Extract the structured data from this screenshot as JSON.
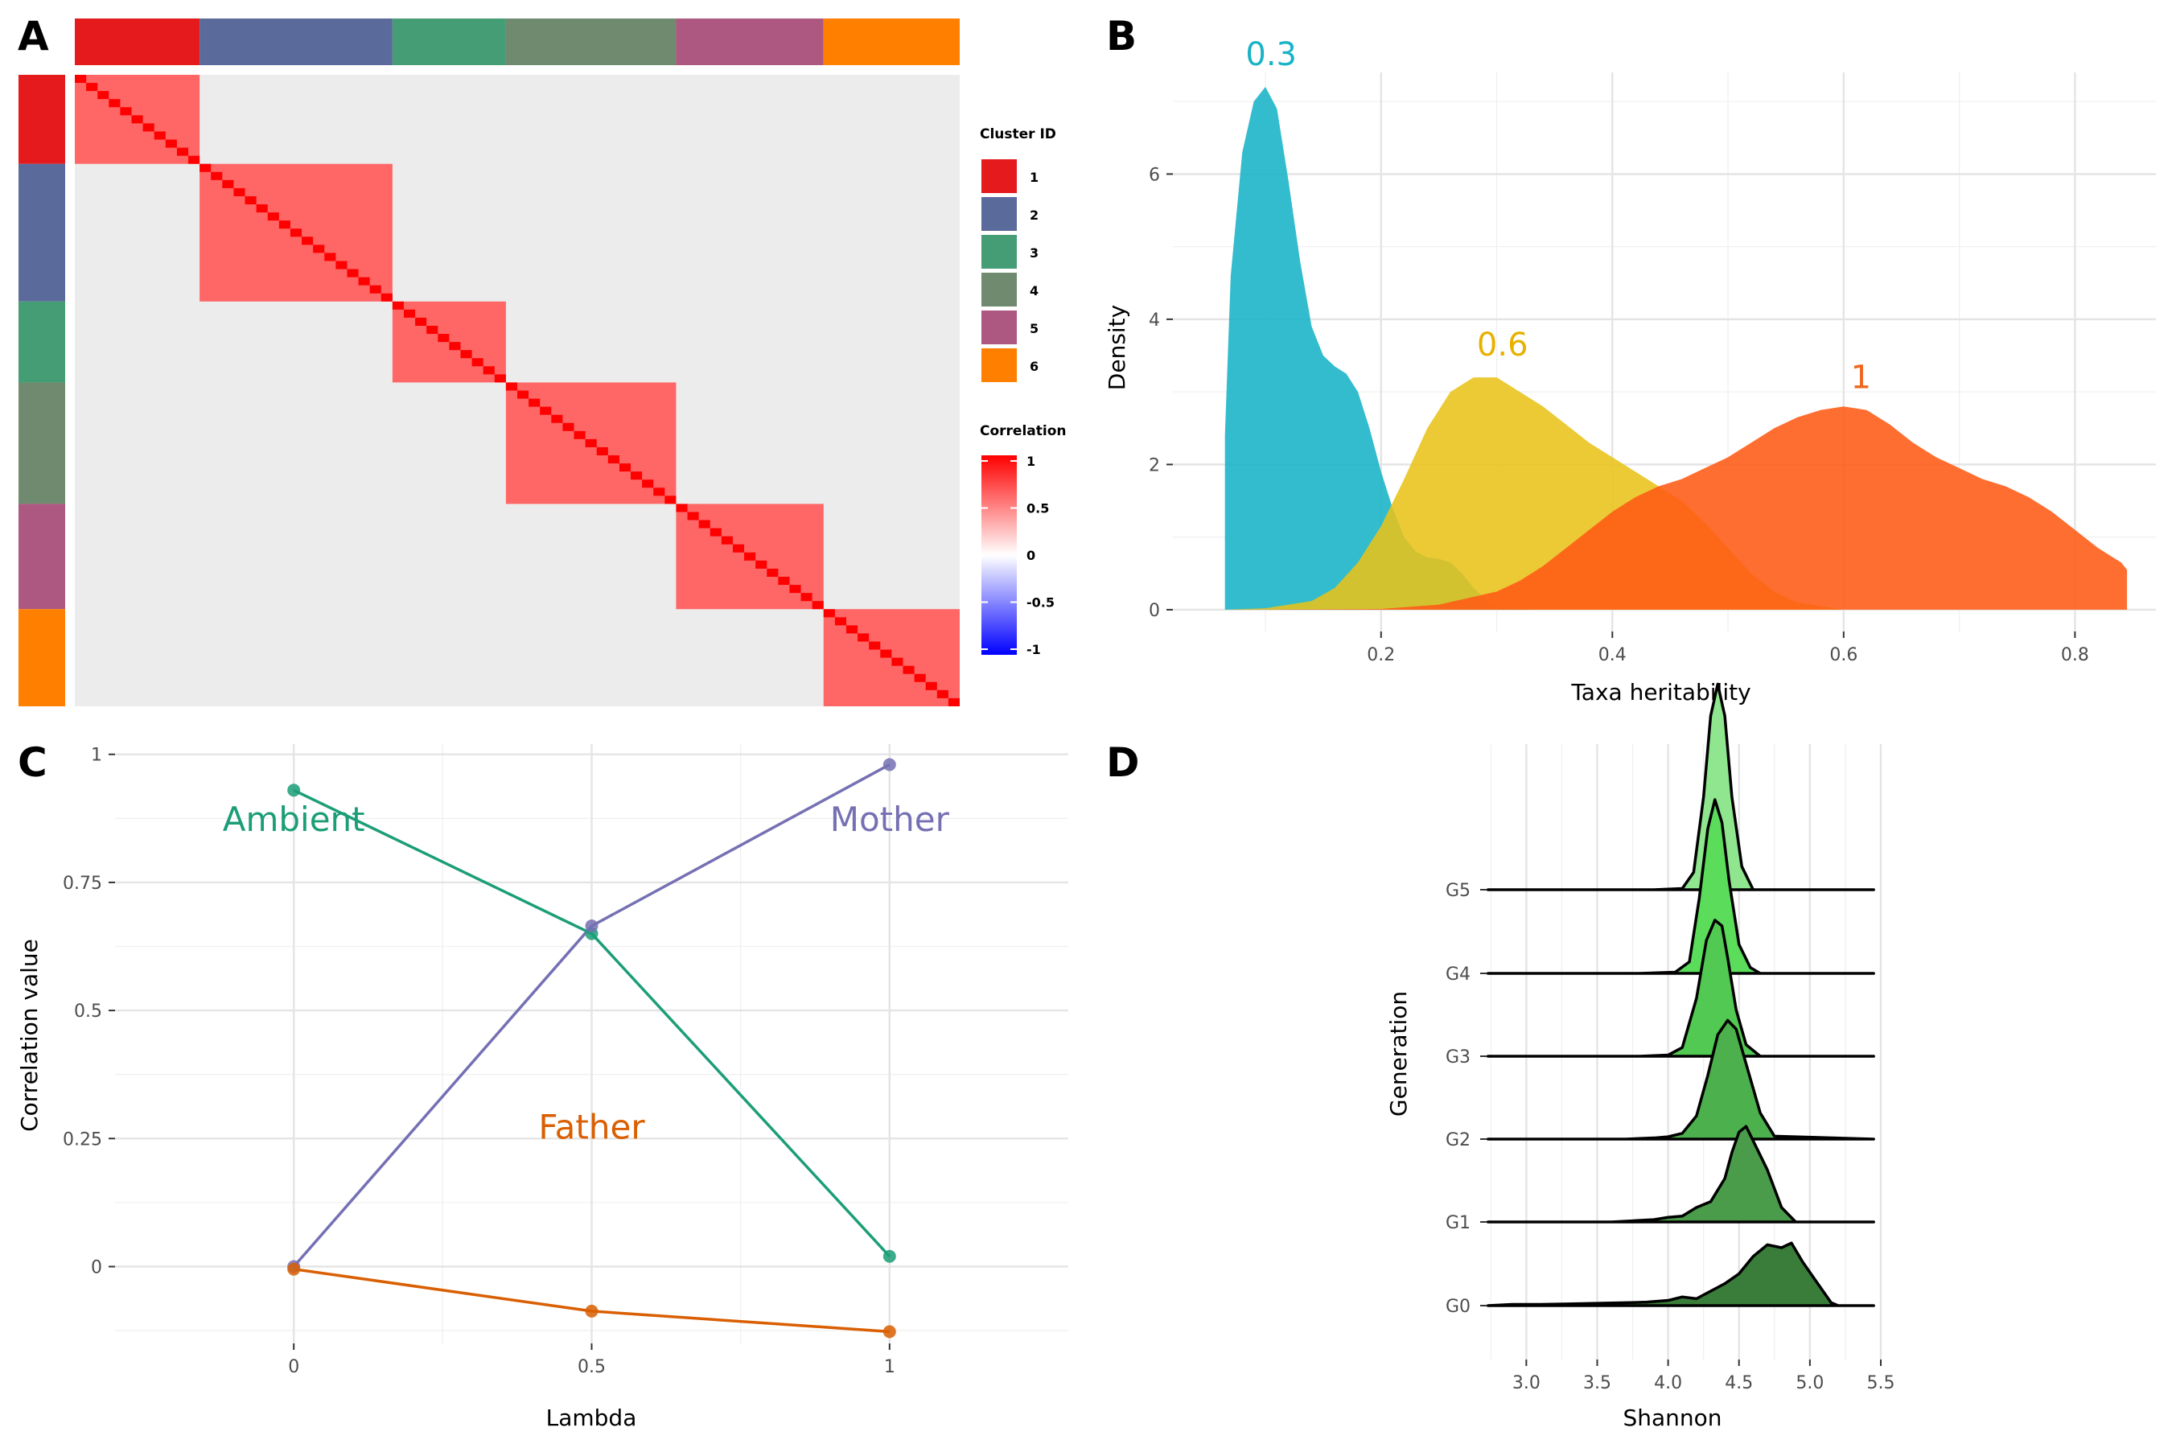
{
  "panels": {
    "a": "A",
    "b": "B",
    "c": "C",
    "d": "D"
  },
  "chart_data": [
    {
      "panel": "A",
      "type": "heatmap",
      "clusters": [
        {
          "id": "1",
          "size": 11,
          "color": "#e41a1c"
        },
        {
          "id": "2",
          "size": 17,
          "color": "#5a6a9b"
        },
        {
          "id": "3",
          "size": 10,
          "color": "#449d75"
        },
        {
          "id": "4",
          "size": 15,
          "color": "#6f8a6e"
        },
        {
          "id": "5",
          "size": 13,
          "color": "#ad5880"
        },
        {
          "id": "6",
          "size": 12,
          "color": "#ff7f00"
        }
      ],
      "within_cluster_correlation": 0.6,
      "between_cluster_correlation": 0.0,
      "diagonal_correlation": 1,
      "legend": {
        "cluster_title": "Cluster ID",
        "correlation_title": "Correlation",
        "correlation_ticks": [
          "1",
          "0.5",
          "0",
          "-0.5",
          "-1"
        ],
        "correlation_colors": [
          "#ff0000",
          "#ffffff",
          "#0000ff"
        ]
      }
    },
    {
      "panel": "B",
      "type": "area",
      "xlabel": "Taxa heritability",
      "ylabel": "Density",
      "xlim": [
        0.02,
        0.87
      ],
      "ylim": [
        -0.3,
        7.4
      ],
      "xticks": [
        0.2,
        0.4,
        0.6,
        0.8
      ],
      "xtick_labels": [
        "0.2",
        "0.4",
        "0.6",
        "0.8"
      ],
      "yticks": [
        0,
        2,
        4,
        6
      ],
      "ytick_labels": [
        "0",
        "2",
        "4",
        "6"
      ],
      "series": [
        {
          "name": "0.3",
          "color": "#17b3c6",
          "x": [
            0.065,
            0.07,
            0.08,
            0.09,
            0.1,
            0.11,
            0.12,
            0.13,
            0.14,
            0.15,
            0.16,
            0.17,
            0.18,
            0.19,
            0.2,
            0.21,
            0.22,
            0.23,
            0.24,
            0.25,
            0.26,
            0.27,
            0.28,
            0.29,
            0.3,
            0.31,
            0.32,
            0.33,
            0.34
          ],
          "y": [
            2.4,
            4.6,
            6.3,
            7.0,
            7.2,
            6.9,
            5.9,
            4.8,
            3.9,
            3.5,
            3.35,
            3.25,
            3.0,
            2.5,
            1.9,
            1.4,
            1.0,
            0.8,
            0.72,
            0.7,
            0.65,
            0.5,
            0.3,
            0.15,
            0.05,
            0.02,
            0.01,
            0.0,
            0.0
          ]
        },
        {
          "name": "0.6",
          "color": "#e8c31a",
          "x": [
            0.065,
            0.1,
            0.14,
            0.16,
            0.18,
            0.2,
            0.22,
            0.24,
            0.26,
            0.28,
            0.3,
            0.32,
            0.34,
            0.36,
            0.38,
            0.4,
            0.42,
            0.44,
            0.46,
            0.48,
            0.5,
            0.52,
            0.54,
            0.56,
            0.6
          ],
          "y": [
            0.0,
            0.02,
            0.12,
            0.3,
            0.65,
            1.15,
            1.8,
            2.5,
            3.0,
            3.2,
            3.2,
            3.0,
            2.8,
            2.55,
            2.3,
            2.1,
            1.9,
            1.7,
            1.5,
            1.2,
            0.85,
            0.5,
            0.25,
            0.1,
            0.0
          ]
        },
        {
          "name": "1",
          "color": "#ff5a14",
          "x": [
            0.065,
            0.2,
            0.25,
            0.3,
            0.32,
            0.34,
            0.36,
            0.38,
            0.4,
            0.42,
            0.44,
            0.46,
            0.48,
            0.5,
            0.52,
            0.54,
            0.56,
            0.58,
            0.6,
            0.62,
            0.64,
            0.66,
            0.68,
            0.7,
            0.72,
            0.74,
            0.76,
            0.78,
            0.8,
            0.82,
            0.84,
            0.845
          ],
          "y": [
            0.0,
            0.01,
            0.07,
            0.25,
            0.4,
            0.6,
            0.85,
            1.1,
            1.35,
            1.55,
            1.7,
            1.8,
            1.95,
            2.1,
            2.3,
            2.5,
            2.65,
            2.75,
            2.8,
            2.75,
            2.55,
            2.3,
            2.1,
            1.95,
            1.8,
            1.7,
            1.55,
            1.35,
            1.1,
            0.85,
            0.65,
            0.55
          ]
        }
      ],
      "annotations": [
        {
          "text": "0.3",
          "x": 0.105,
          "y": 7.5,
          "color": "#17b3c6"
        },
        {
          "text": "0.6",
          "x": 0.305,
          "y": 3.5,
          "color": "#e8b000"
        },
        {
          "text": "1",
          "x": 0.615,
          "y": 3.05,
          "color": "#f0661f"
        }
      ]
    },
    {
      "panel": "C",
      "type": "line",
      "xlabel": "Lambda",
      "ylabel": "Correlation value",
      "xlim": [
        -0.3,
        1.3
      ],
      "ylim": [
        -0.15,
        1.02
      ],
      "xticks": [
        0,
        0.5,
        1
      ],
      "xtick_labels": [
        "0",
        "0.5",
        "1"
      ],
      "yticks": [
        0,
        0.25,
        0.5,
        0.75,
        1
      ],
      "ytick_labels": [
        "0",
        "0.25",
        "0.5",
        "0.75",
        "1"
      ],
      "series": [
        {
          "name": "Ambient",
          "color": "#1b9e77",
          "x": [
            0,
            0.5,
            1
          ],
          "y": [
            0.93,
            0.65,
            0.02
          ]
        },
        {
          "name": "Mother",
          "color": "#7570b3",
          "x": [
            0,
            0.5,
            1
          ],
          "y": [
            0.0,
            0.665,
            0.98
          ]
        },
        {
          "name": "Father",
          "color": "#d95f02",
          "x": [
            0,
            0.5,
            1
          ],
          "y": [
            -0.005,
            -0.087,
            -0.127
          ]
        }
      ],
      "annotations": [
        {
          "text": "Ambient",
          "x": 0.0,
          "y": 0.85,
          "color": "#1b9e77"
        },
        {
          "text": "Mother",
          "x": 1.0,
          "y": 0.85,
          "color": "#7570b3"
        },
        {
          "text": "Father",
          "x": 0.5,
          "y": 0.25,
          "color": "#d95f02"
        }
      ]
    },
    {
      "panel": "D",
      "type": "area",
      "xlabel": "Shannon",
      "ylabel": "Generation",
      "xlim": [
        2.72,
        5.5
      ],
      "xticks": [
        3.0,
        3.5,
        4.0,
        4.5,
        5.0,
        5.5
      ],
      "xtick_labels": [
        "3.0",
        "3.5",
        "4.0",
        "4.5",
        "5.0",
        "5.5"
      ],
      "categories": [
        "G0",
        "G1",
        "G2",
        "G3",
        "G4",
        "G5"
      ],
      "series": [
        {
          "name": "G0",
          "color": "#3a7d3a",
          "x": [
            2.73,
            2.9,
            3.1,
            3.3,
            3.5,
            3.7,
            3.85,
            4.0,
            4.1,
            4.2,
            4.3,
            4.4,
            4.5,
            4.6,
            4.7,
            4.8,
            4.87,
            4.95,
            5.05,
            5.15,
            5.2,
            5.45
          ],
          "y": [
            0.0,
            0.02,
            0.02,
            0.03,
            0.04,
            0.05,
            0.06,
            0.09,
            0.15,
            0.12,
            0.25,
            0.38,
            0.55,
            0.85,
            1.05,
            1.0,
            1.08,
            0.75,
            0.4,
            0.05,
            0.0,
            0.0
          ]
        },
        {
          "name": "G1",
          "color": "#4a9c4a",
          "x": [
            2.73,
            3.6,
            3.75,
            3.9,
            4.0,
            4.1,
            4.2,
            4.3,
            4.4,
            4.45,
            4.5,
            4.55,
            4.6,
            4.7,
            4.8,
            4.9,
            5.45
          ],
          "y": [
            0.0,
            0.0,
            0.02,
            0.04,
            0.08,
            0.1,
            0.25,
            0.35,
            0.75,
            1.2,
            1.55,
            1.65,
            1.4,
            0.9,
            0.25,
            0.0,
            0.0
          ]
        },
        {
          "name": "G2",
          "color": "#4cb04c",
          "x": [
            2.73,
            3.7,
            3.9,
            4.0,
            4.1,
            4.2,
            4.28,
            4.35,
            4.42,
            4.48,
            4.55,
            4.65,
            4.75,
            5.45
          ],
          "y": [
            0.0,
            0.0,
            0.02,
            0.04,
            0.1,
            0.4,
            1.1,
            1.8,
            2.05,
            1.9,
            1.3,
            0.45,
            0.05,
            0.0
          ]
        },
        {
          "name": "G3",
          "color": "#52c952",
          "x": [
            2.73,
            3.8,
            4.0,
            4.1,
            4.2,
            4.27,
            4.33,
            4.38,
            4.42,
            4.48,
            4.55,
            4.65,
            5.45
          ],
          "y": [
            0.0,
            0.0,
            0.02,
            0.15,
            1.0,
            2.0,
            2.35,
            2.25,
            1.7,
            0.8,
            0.2,
            0.0,
            0.0
          ]
        },
        {
          "name": "G4",
          "color": "#5bdc5b",
          "x": [
            2.73,
            3.8,
            4.05,
            4.15,
            4.22,
            4.28,
            4.33,
            4.38,
            4.43,
            4.5,
            4.58,
            4.65,
            5.45
          ],
          "y": [
            0.0,
            0.0,
            0.02,
            0.2,
            1.3,
            2.5,
            3.0,
            2.6,
            1.6,
            0.5,
            0.1,
            0.0,
            0.0
          ]
        },
        {
          "name": "G5",
          "color": "#8fe68f",
          "x": [
            2.73,
            3.9,
            4.1,
            4.18,
            4.25,
            4.3,
            4.35,
            4.4,
            4.45,
            4.52,
            4.6,
            5.45
          ],
          "y": [
            0.0,
            0.0,
            0.02,
            0.3,
            1.6,
            3.0,
            3.55,
            3.0,
            1.6,
            0.4,
            0.0,
            0.0
          ]
        }
      ]
    }
  ]
}
